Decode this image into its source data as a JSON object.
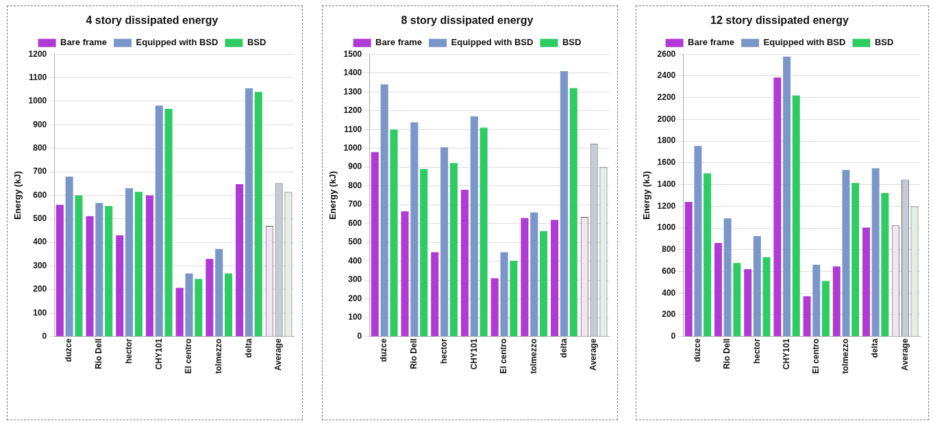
{
  "chart_data": [
    {
      "type": "bar",
      "title": "4 story dissipated energy",
      "ylabel": "Energy (kJ)",
      "categories": [
        "duzce",
        "Rio Dell",
        "hector",
        "CHY101",
        "El centro",
        "tolmezzo",
        "delta",
        "Average"
      ],
      "series": [
        {
          "name": "Bare frame",
          "color": "#b03ad6",
          "colors": [
            "#b03ad6",
            "#b03ad6",
            "#b03ad6",
            "#b03ad6",
            "#b03ad6",
            "#b03ad6",
            "#b03ad6",
            "#f3e6f3"
          ],
          "values": [
            560,
            512,
            430,
            600,
            207,
            330,
            648,
            470
          ]
        },
        {
          "name": "Equipped with BSD",
          "color": "#7b96c8",
          "colors": [
            "#7b96c8",
            "#7b96c8",
            "#7b96c8",
            "#7b96c8",
            "#7b96c8",
            "#7b96c8",
            "#7b96c8",
            "#c4ccd8"
          ],
          "values": [
            680,
            568,
            630,
            982,
            268,
            372,
            1055,
            652
          ]
        },
        {
          "name": "BSD",
          "color": "#2ecc62",
          "colors": [
            "#2ecc62",
            "#2ecc62",
            "#2ecc62",
            "#2ecc62",
            "#2ecc62",
            "#2ecc62",
            "#2ecc62",
            "#e2efe6"
          ],
          "values": [
            600,
            555,
            615,
            968,
            245,
            268,
            1040,
            614
          ]
        }
      ],
      "ylim": [
        0,
        1200
      ],
      "yticks": [
        0,
        100,
        200,
        300,
        400,
        500,
        600,
        700,
        800,
        900,
        1000,
        1100,
        1200
      ],
      "grid": "y",
      "legend": "top"
    },
    {
      "type": "bar",
      "title": "8 story dissipated energy",
      "ylabel": "Energy (kJ)",
      "categories": [
        "duzce",
        "Rio Dell",
        "hector",
        "CHY101",
        "El centro",
        "tolmezzo",
        "delta",
        "Average"
      ],
      "series": [
        {
          "name": "Bare frame",
          "color": "#b03ad6",
          "colors": [
            "#b03ad6",
            "#b03ad6",
            "#b03ad6",
            "#b03ad6",
            "#b03ad6",
            "#b03ad6",
            "#b03ad6",
            "#f3e6f3"
          ],
          "values": [
            980,
            665,
            448,
            780,
            310,
            630,
            620,
            635
          ]
        },
        {
          "name": "Equipped with BSD",
          "color": "#7b96c8",
          "colors": [
            "#7b96c8",
            "#7b96c8",
            "#7b96c8",
            "#7b96c8",
            "#7b96c8",
            "#7b96c8",
            "#7b96c8",
            "#c4ccd8"
          ],
          "values": [
            1340,
            1138,
            1005,
            1170,
            448,
            660,
            1410,
            1025
          ]
        },
        {
          "name": "BSD",
          "color": "#2ecc62",
          "colors": [
            "#2ecc62",
            "#2ecc62",
            "#2ecc62",
            "#2ecc62",
            "#2ecc62",
            "#2ecc62",
            "#2ecc62",
            "#e2efe6"
          ],
          "values": [
            1100,
            890,
            922,
            1110,
            402,
            560,
            1320,
            900
          ]
        }
      ],
      "ylim": [
        0,
        1500
      ],
      "yticks": [
        0,
        100,
        200,
        300,
        400,
        500,
        600,
        700,
        800,
        900,
        1000,
        1100,
        1200,
        1300,
        1400,
        1500
      ],
      "grid": "y",
      "legend": "top"
    },
    {
      "type": "bar",
      "title": "12 story dissipated energy",
      "ylabel": "Energy (kJ)",
      "categories": [
        "duzce",
        "Rio Dell",
        "hector",
        "CHY101",
        "El centro",
        "tolmezzo",
        "delta",
        "Average"
      ],
      "series": [
        {
          "name": "Bare frame",
          "color": "#b03ad6",
          "colors": [
            "#b03ad6",
            "#b03ad6",
            "#b03ad6",
            "#b03ad6",
            "#b03ad6",
            "#b03ad6",
            "#b03ad6",
            "#f3e6f3"
          ],
          "values": [
            1240,
            862,
            621,
            2385,
            372,
            646,
            1004,
            1024
          ]
        },
        {
          "name": "Equipped with BSD",
          "color": "#7b96c8",
          "colors": [
            "#7b96c8",
            "#7b96c8",
            "#7b96c8",
            "#7b96c8",
            "#7b96c8",
            "#7b96c8",
            "#7b96c8",
            "#c4ccd8"
          ],
          "values": [
            1755,
            1089,
            924,
            2577,
            661,
            1534,
            1550,
            1445
          ]
        },
        {
          "name": "BSD",
          "color": "#2ecc62",
          "colors": [
            "#2ecc62",
            "#2ecc62",
            "#2ecc62",
            "#2ecc62",
            "#2ecc62",
            "#2ecc62",
            "#2ecc62",
            "#e2efe6"
          ],
          "values": [
            1503,
            677,
            730,
            2220,
            512,
            1414,
            1321,
            1198
          ]
        }
      ],
      "ylim": [
        0,
        2600
      ],
      "yticks": [
        0,
        200,
        400,
        600,
        800,
        1000,
        1200,
        1400,
        1600,
        1800,
        2000,
        2200,
        2400,
        2600
      ],
      "grid": "y",
      "legend": "top"
    }
  ]
}
